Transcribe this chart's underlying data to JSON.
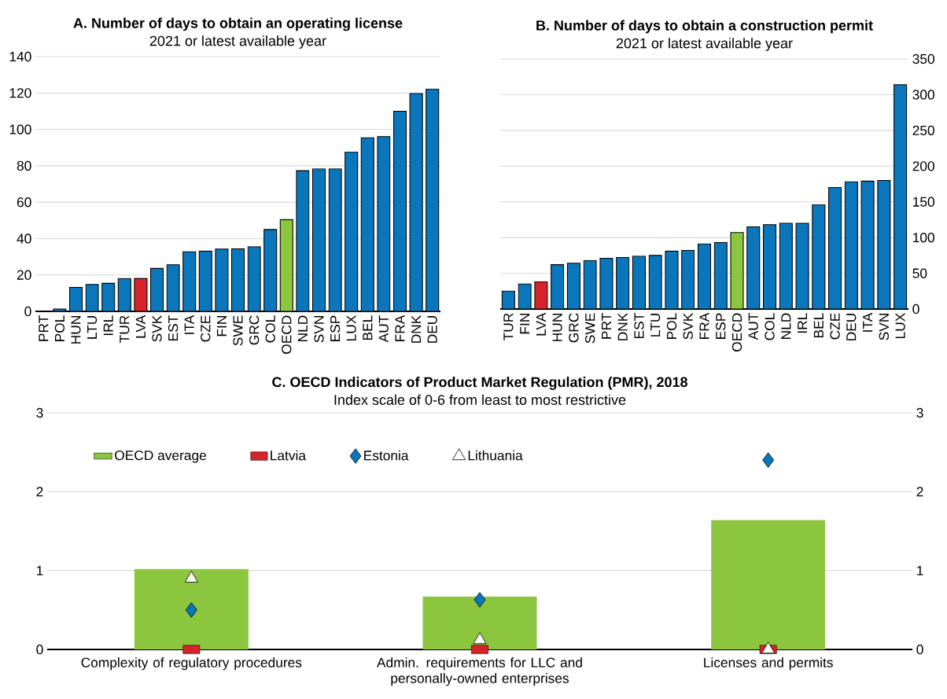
{
  "chart_data": [
    {
      "type": "bar",
      "title": "A. Number of days to obtain an operating license",
      "subtitle": "2021 or latest available year",
      "categories": [
        "PRT",
        "POL",
        "HUN",
        "LTU",
        "IRL",
        "TUR",
        "LVA",
        "SVK",
        "EST",
        "ITA",
        "CZE",
        "FIN",
        "SWE",
        "GRC",
        "COL",
        "OECD",
        "NLD",
        "SVN",
        "ESP",
        "LUX",
        "BEL",
        "AUT",
        "FRA",
        "DNK",
        "DEU"
      ],
      "values": [
        0,
        1.3,
        13.2,
        14.8,
        15.4,
        18.0,
        18.1,
        23.6,
        25.6,
        32.7,
        33.1,
        34.2,
        34.4,
        35.5,
        45.0,
        50.4,
        77.3,
        78.3,
        78.3,
        87.6,
        95.4,
        96.0,
        110.0,
        119.7,
        122.2
      ],
      "colors": [
        "#0a77bd",
        "#0a77bd",
        "#0a77bd",
        "#0a77bd",
        "#0a77bd",
        "#0a77bd",
        "#d9232a",
        "#0a77bd",
        "#0a77bd",
        "#0a77bd",
        "#0a77bd",
        "#0a77bd",
        "#0a77bd",
        "#0a77bd",
        "#0a77bd",
        "#8cc63f",
        "#0a77bd",
        "#0a77bd",
        "#0a77bd",
        "#0a77bd",
        "#0a77bd",
        "#0a77bd",
        "#0a77bd",
        "#0a77bd",
        "#0a77bd"
      ],
      "ylim": [
        0,
        140
      ],
      "yticks": [
        0,
        20,
        40,
        60,
        80,
        100,
        120,
        140
      ],
      "grid": "y"
    },
    {
      "type": "bar",
      "title": "B. Number of days to obtain a construction permit",
      "subtitle": "2021 or latest available year",
      "categories": [
        "TUR",
        "FIN",
        "LVA",
        "HUN",
        "GRC",
        "SWE",
        "PRT",
        "DNK",
        "EST",
        "LTU",
        "POL",
        "SVK",
        "FRA",
        "ESP",
        "OECD",
        "AUT",
        "COL",
        "NLD",
        "IRL",
        "BEL",
        "CZE",
        "DEU",
        "ITA",
        "SVN",
        "LUX"
      ],
      "values": [
        25,
        35,
        38,
        62,
        64,
        68,
        71,
        72,
        74,
        75,
        81,
        82,
        91,
        93,
        107,
        115,
        118,
        120,
        120,
        146,
        170,
        178,
        179,
        180,
        314
      ],
      "colors": [
        "#0a77bd",
        "#0a77bd",
        "#d9232a",
        "#0a77bd",
        "#0a77bd",
        "#0a77bd",
        "#0a77bd",
        "#0a77bd",
        "#0a77bd",
        "#0a77bd",
        "#0a77bd",
        "#0a77bd",
        "#0a77bd",
        "#0a77bd",
        "#8cc63f",
        "#0a77bd",
        "#0a77bd",
        "#0a77bd",
        "#0a77bd",
        "#0a77bd",
        "#0a77bd",
        "#0a77bd",
        "#0a77bd",
        "#0a77bd",
        "#0a77bd"
      ],
      "ylim": [
        0,
        350
      ],
      "yticks": [
        0,
        50,
        100,
        150,
        200,
        250,
        300,
        350
      ],
      "grid": "y"
    },
    {
      "type": "bar",
      "title": "C. OECD Indicators of Product Market Regulation (PMR), 2018",
      "subtitle": "Index scale of 0-6 from least to most restrictive",
      "categories": [
        "Complexity of regulatory procedures",
        "Admin. requirements for LLC and personally-owned enterprises",
        "Licenses and permits"
      ],
      "series": [
        {
          "name": "OECD average",
          "color": "#8cc63f",
          "values": [
            1.02,
            0.67,
            1.64
          ]
        },
        {
          "name": "Latvia",
          "type": "scatter",
          "marker": "square",
          "color": "#d9232a",
          "values": [
            0,
            0,
            0
          ]
        },
        {
          "name": "Estonia",
          "type": "scatter",
          "marker": "diamond",
          "color": "#0a77bd",
          "values": [
            0.5,
            0.63,
            2.4
          ]
        },
        {
          "name": "Lithuania",
          "type": "scatter",
          "marker": "triangle",
          "color": "#ffffff",
          "values": [
            0.9,
            0.12,
            0
          ]
        }
      ],
      "ylim": [
        0,
        3
      ],
      "yticks": [
        0,
        1,
        2,
        3
      ],
      "y2lim": [
        0,
        3
      ],
      "y2ticks": [
        0,
        1,
        2,
        3
      ],
      "grid": "y",
      "legend": "top left"
    }
  ]
}
